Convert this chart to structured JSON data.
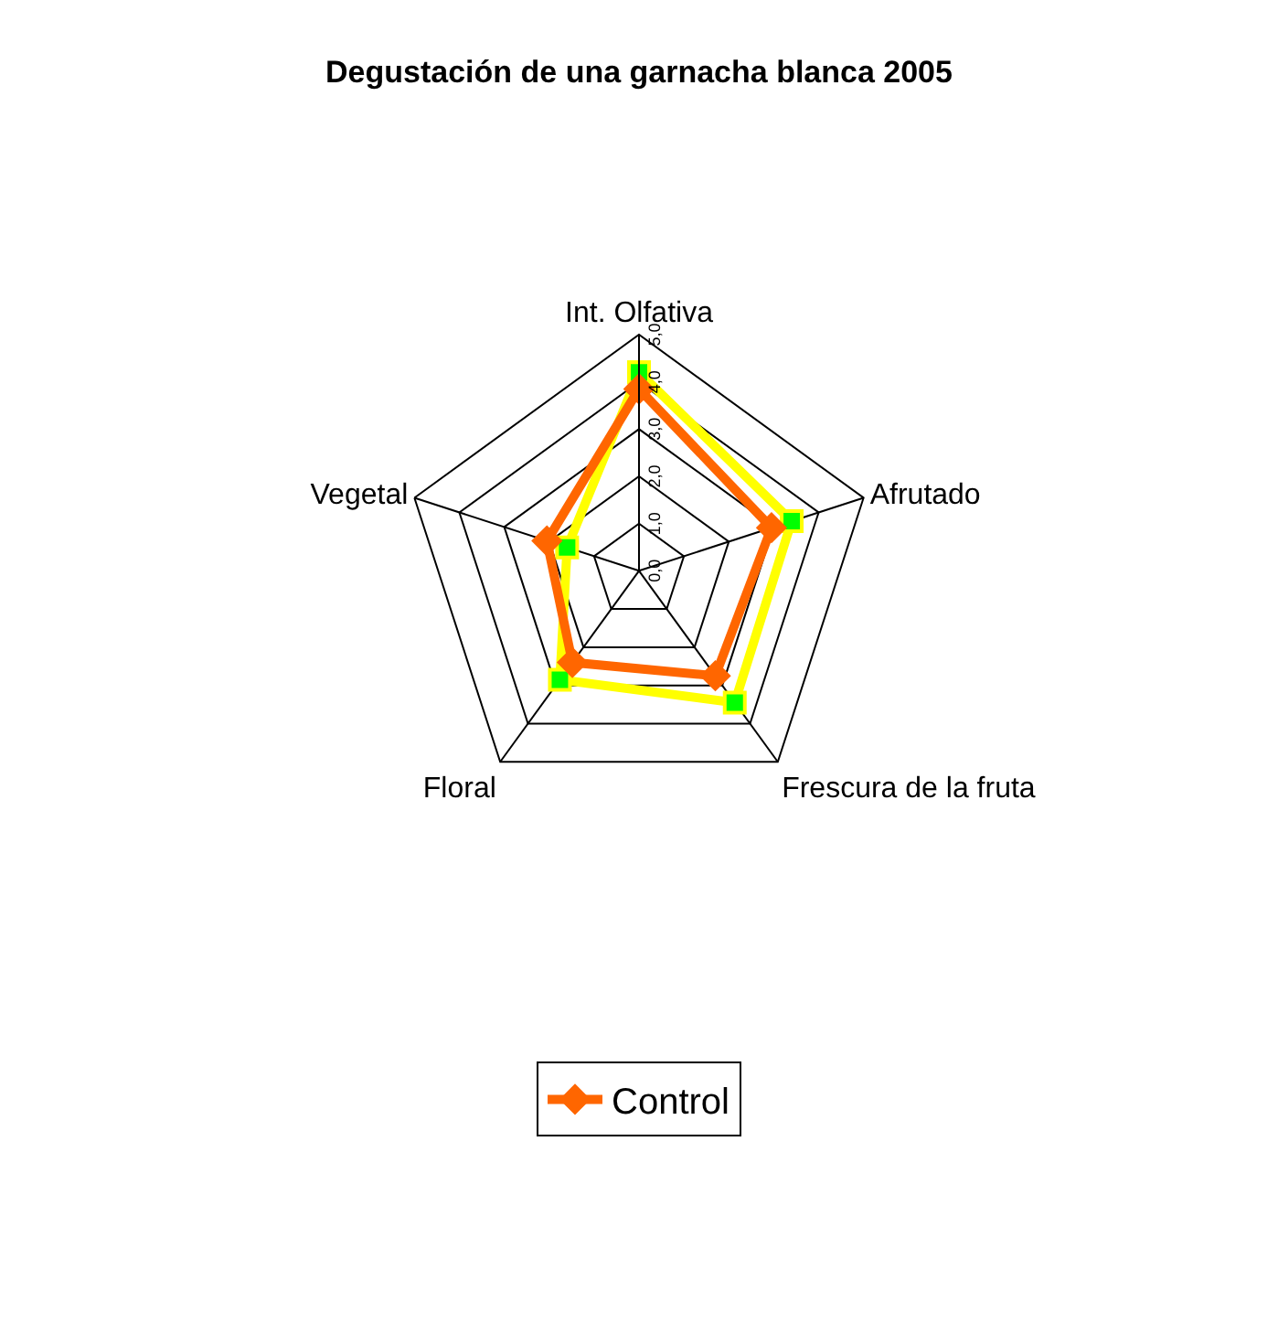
{
  "chart_data": {
    "type": "radar",
    "title": "Degustación de una garnacha blanca 2005",
    "categories": [
      "Int. Olfativa",
      "Afrutado",
      "Frescura de la fruta",
      "Floral",
      "Vegetal"
    ],
    "series": [
      {
        "name": "Control",
        "color": "#ff6600",
        "marker": "diamond",
        "values": [
          3.85,
          2.95,
          2.75,
          2.4,
          2.05
        ]
      },
      {
        "color": "#ffff00",
        "marker": "square",
        "values": [
          4.2,
          3.4,
          3.45,
          2.85,
          1.6
        ]
      }
    ],
    "ylim": [
      0,
      5
    ],
    "yticks": [
      {
        "value": 0,
        "label": "0,0"
      },
      {
        "value": 1,
        "label": "1,0"
      },
      {
        "value": 2,
        "label": "2,0"
      },
      {
        "value": 3,
        "label": "3,0"
      },
      {
        "value": 4,
        "label": "4,0"
      },
      {
        "value": 5,
        "label": "5,0"
      }
    ],
    "legend": "bottom"
  }
}
